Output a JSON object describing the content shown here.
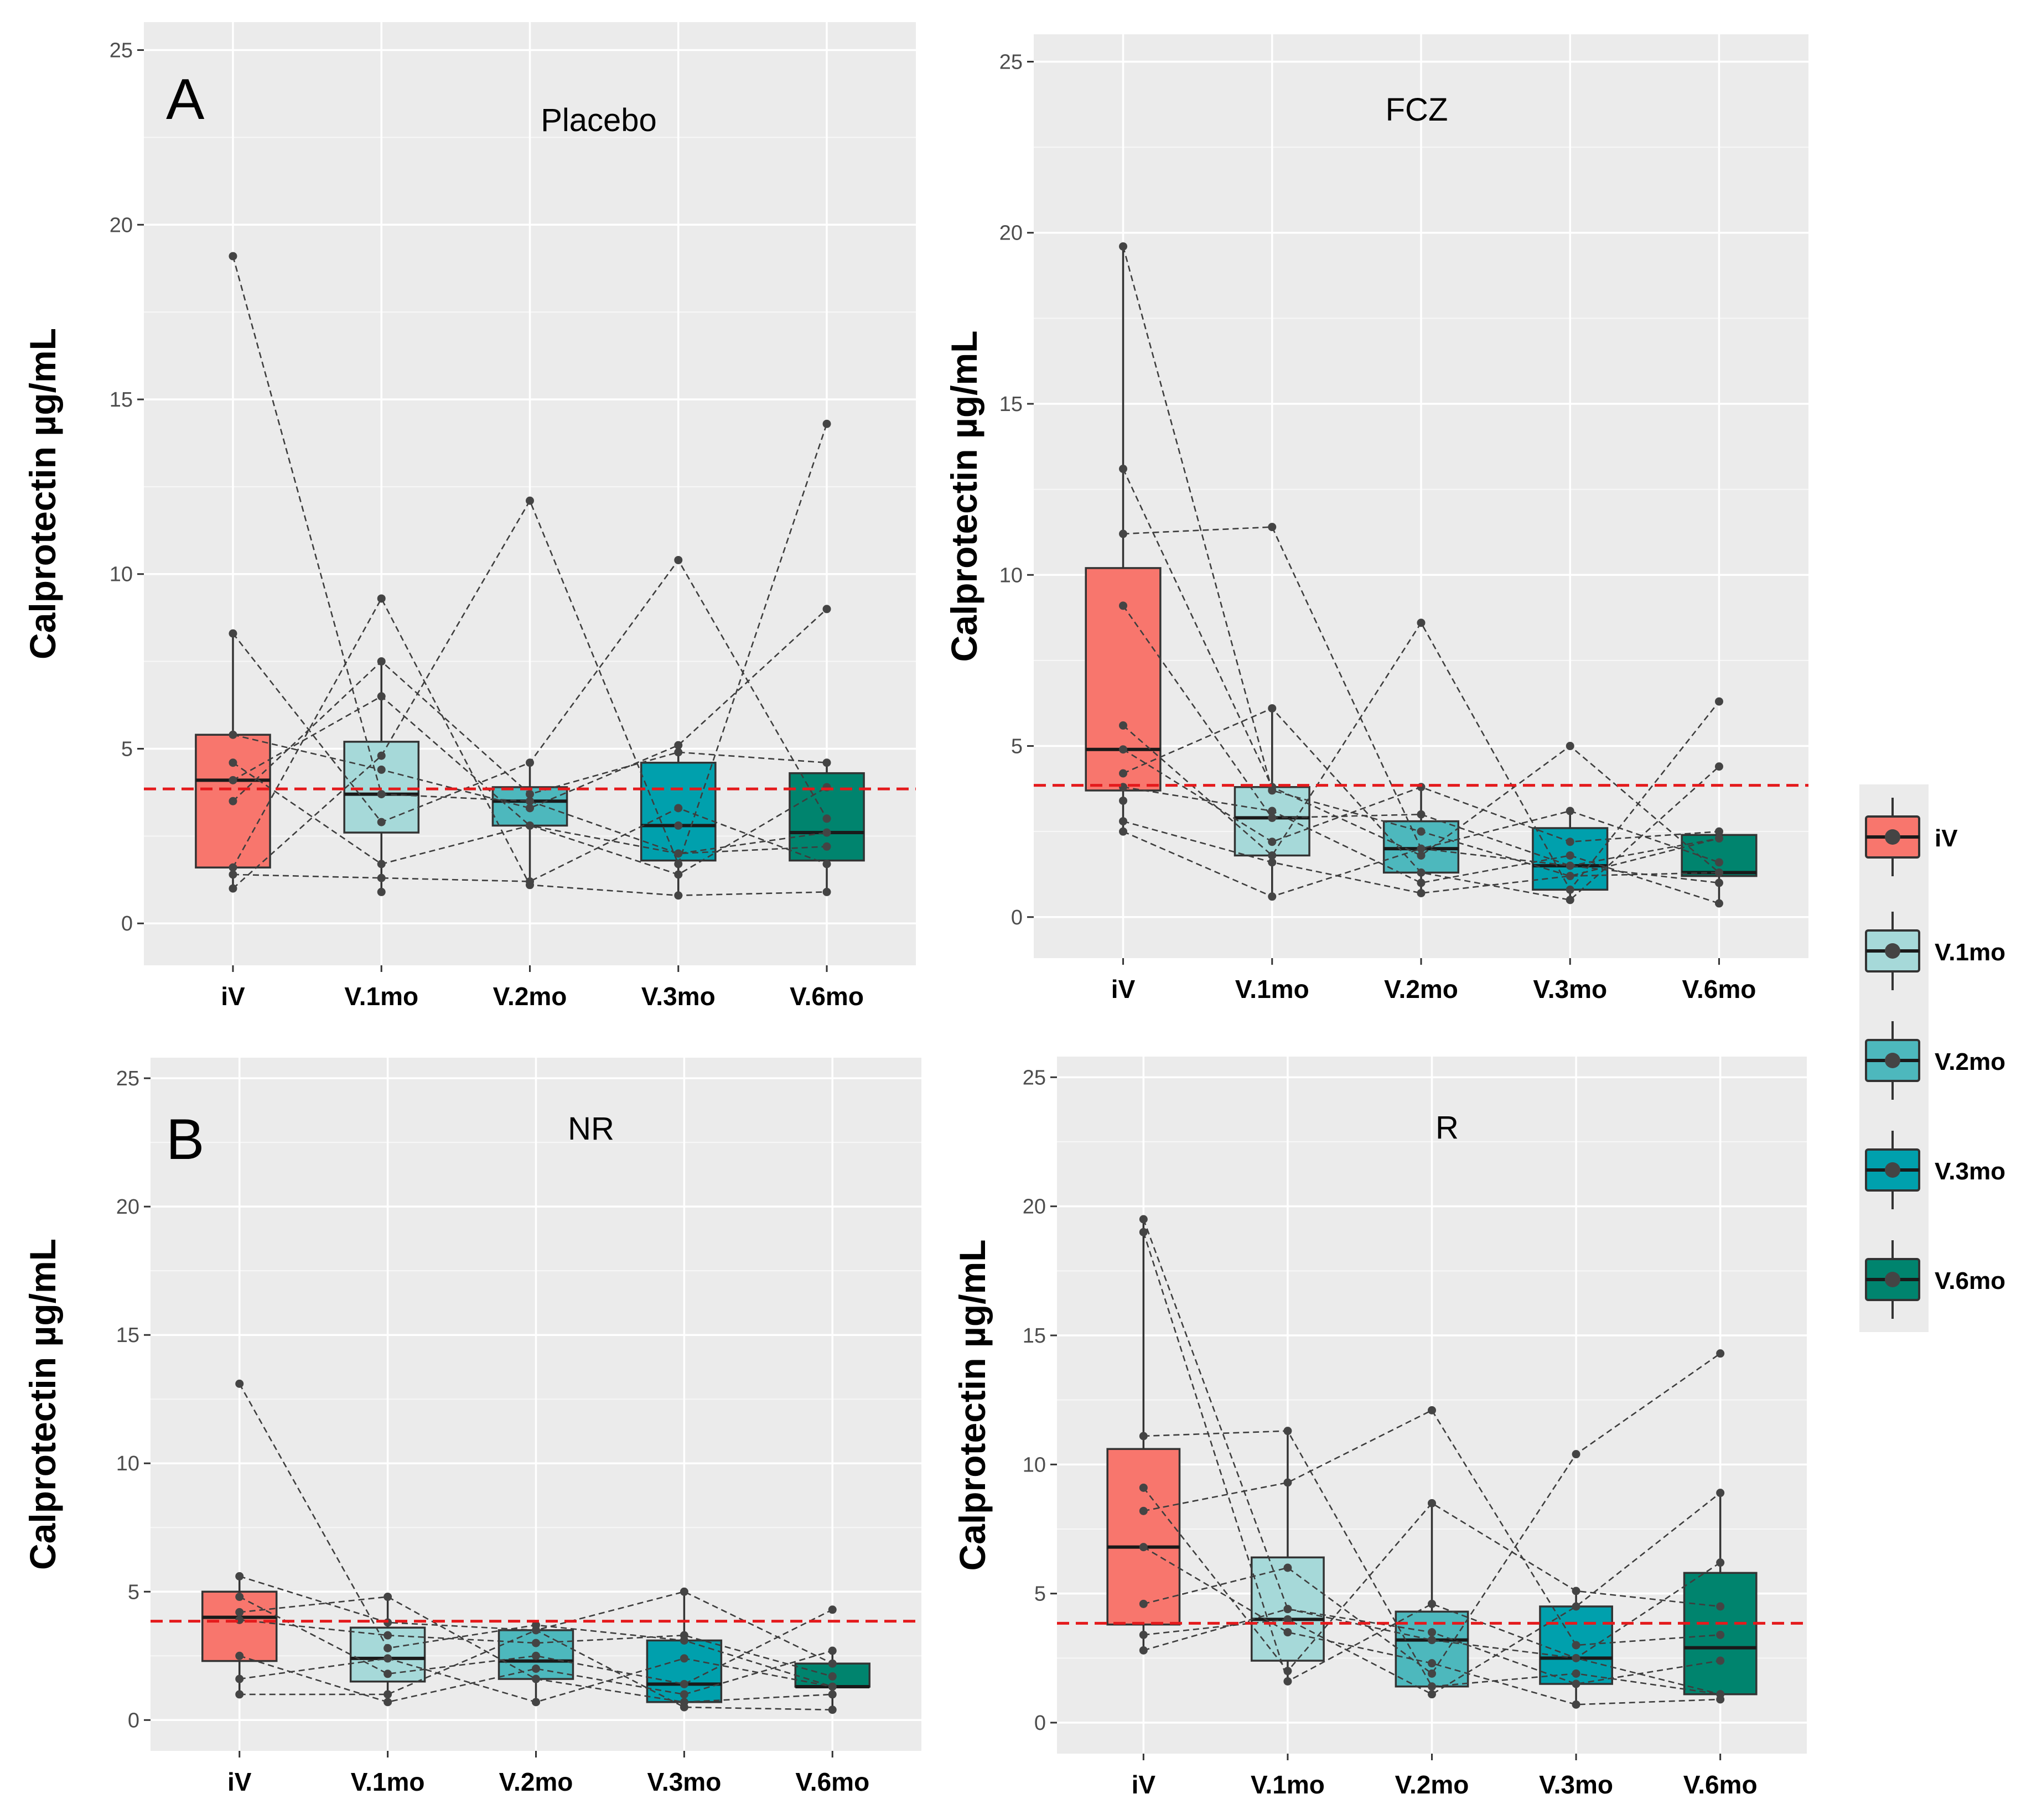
{
  "figure": {
    "ylabel": "Calprotectin µg/mL",
    "reference_line": 3.85,
    "reference_color": "#e41a1c"
  },
  "legend": {
    "items": [
      {
        "label": "iV",
        "color": "#f8766d"
      },
      {
        "label": "V.1mo",
        "color": "#a6d9d9"
      },
      {
        "label": "V.2mo",
        "color": "#4db8bd"
      },
      {
        "label": "V.3mo",
        "color": "#00a0ad"
      },
      {
        "label": "V.6mo",
        "color": "#00846e"
      }
    ]
  },
  "chart_data": [
    {
      "type": "box",
      "panel_letter": "A",
      "title": "Placebo",
      "categories": [
        "iV",
        "V.1mo",
        "V.2mo",
        "V.3mo",
        "V.6mo"
      ],
      "ylabel": "Calprotectin µg/mL",
      "ylim": [
        -1.2,
        25.8
      ],
      "yticks": [
        0,
        5,
        10,
        15,
        20,
        25
      ],
      "boxes": [
        {
          "q1": 1.6,
          "median": 4.1,
          "q3": 5.4,
          "wmin": 1.0,
          "wmax": 8.3,
          "points": [
            19.1,
            8.3,
            5.4,
            4.6,
            4.1,
            3.5,
            1.6,
            1.4,
            1.0
          ]
        },
        {
          "q1": 2.6,
          "median": 3.7,
          "q3": 5.2,
          "wmin": 0.9,
          "wmax": 7.5,
          "points": [
            9.3,
            7.5,
            6.5,
            4.8,
            4.4,
            3.7,
            2.9,
            1.7,
            1.3,
            0.9
          ]
        },
        {
          "q1": 2.8,
          "median": 3.5,
          "q3": 3.9,
          "wmin": 1.1,
          "wmax": 4.6,
          "points": [
            12.1,
            4.6,
            3.7,
            3.5,
            3.3,
            2.8,
            1.2,
            1.1
          ]
        },
        {
          "q1": 1.8,
          "median": 2.8,
          "q3": 4.6,
          "wmin": 0.8,
          "wmax": 5.1,
          "points": [
            10.4,
            5.1,
            4.9,
            3.3,
            2.8,
            2.0,
            1.7,
            1.4,
            0.8
          ]
        },
        {
          "q1": 1.8,
          "median": 2.6,
          "q3": 4.3,
          "wmin": 0.9,
          "wmax": 4.6,
          "points": [
            14.3,
            9.0,
            4.6,
            3.9,
            3.0,
            2.6,
            2.2,
            1.7,
            0.9
          ]
        }
      ],
      "lines": [
        [
          1.0,
          4.8,
          12.1,
          1.7,
          14.3
        ],
        [
          19.1,
          3.7,
          3.5,
          2.0,
          2.6
        ],
        [
          8.3,
          2.9,
          4.6,
          10.4,
          3.0
        ],
        [
          5.4,
          4.4,
          3.3,
          5.1,
          9.0
        ],
        [
          4.6,
          1.7,
          2.8,
          2.0,
          2.2
        ],
        [
          3.5,
          7.5,
          3.7,
          4.9,
          4.6
        ],
        [
          1.6,
          9.3,
          1.1,
          0.8,
          0.9
        ],
        [
          1.4,
          1.3,
          1.2,
          3.3,
          1.7
        ],
        [
          4.1,
          6.5,
          2.8,
          1.4,
          3.9
        ]
      ]
    },
    {
      "type": "box",
      "panel_letter": "",
      "title": "FCZ",
      "categories": [
        "iV",
        "V.1mo",
        "V.2mo",
        "V.3mo",
        "V.6mo"
      ],
      "ylabel": "Calprotectin µg/mL",
      "ylim": [
        -1.2,
        25.8
      ],
      "yticks": [
        0,
        5,
        10,
        15,
        20,
        25
      ],
      "boxes": [
        {
          "q1": 3.7,
          "median": 4.9,
          "q3": 10.2,
          "wmin": 2.5,
          "wmax": 19.6,
          "points": [
            19.6,
            13.1,
            11.2,
            9.1,
            5.6,
            4.9,
            4.2,
            3.8,
            3.4,
            2.8,
            2.5
          ]
        },
        {
          "q1": 1.8,
          "median": 2.9,
          "q3": 3.8,
          "wmin": 0.6,
          "wmax": 6.1,
          "points": [
            11.4,
            6.1,
            3.8,
            3.7,
            3.1,
            2.9,
            2.2,
            1.8,
            1.6,
            0.6
          ]
        },
        {
          "q1": 1.3,
          "median": 2.0,
          "q3": 2.8,
          "wmin": 0.7,
          "wmax": 3.8,
          "points": [
            8.6,
            3.8,
            3.0,
            2.5,
            2.0,
            1.8,
            1.3,
            1.0,
            0.7
          ]
        },
        {
          "q1": 0.8,
          "median": 1.5,
          "q3": 2.6,
          "wmin": 0.5,
          "wmax": 3.1,
          "points": [
            5.0,
            3.1,
            2.2,
            1.8,
            1.5,
            1.2,
            0.8,
            0.5
          ]
        },
        {
          "q1": 1.2,
          "median": 1.3,
          "q3": 2.4,
          "wmin": 0.4,
          "wmax": 2.5,
          "points": [
            6.3,
            4.4,
            2.5,
            2.3,
            1.6,
            1.3,
            1.0,
            0.4
          ]
        }
      ],
      "lines": [
        [
          19.6,
          3.7,
          2.5,
          1.2,
          2.3
        ],
        [
          13.1,
          3.8,
          1.8,
          5.0,
          1.3
        ],
        [
          11.2,
          11.4,
          2.0,
          3.1,
          1.6
        ],
        [
          9.1,
          2.9,
          3.0,
          1.5,
          1.0
        ],
        [
          5.6,
          1.8,
          8.6,
          0.8,
          6.3
        ],
        [
          4.9,
          2.2,
          3.8,
          2.2,
          2.5
        ],
        [
          4.2,
          6.1,
          1.3,
          0.5,
          4.4
        ],
        [
          3.8,
          3.1,
          1.0,
          1.8,
          0.4
        ],
        [
          2.8,
          1.6,
          0.7,
          1.2,
          1.3
        ],
        [
          2.5,
          0.6,
          2.0,
          1.5,
          2.3
        ]
      ]
    },
    {
      "type": "box",
      "panel_letter": "B",
      "title": "NR",
      "categories": [
        "iV",
        "V.1mo",
        "V.2mo",
        "V.3mo",
        "V.6mo"
      ],
      "ylabel": "Calprotectin µg/mL",
      "ylim": [
        -1.2,
        25.8
      ],
      "yticks": [
        0,
        5,
        10,
        15,
        20,
        25
      ],
      "boxes": [
        {
          "q1": 2.3,
          "median": 4.0,
          "q3": 5.0,
          "wmin": 1.0,
          "wmax": 5.6,
          "points": [
            13.1,
            5.6,
            4.8,
            4.2,
            3.9,
            2.5,
            1.6,
            1.0
          ]
        },
        {
          "q1": 1.5,
          "median": 2.4,
          "q3": 3.6,
          "wmin": 0.7,
          "wmax": 4.8,
          "points": [
            4.8,
            3.8,
            3.3,
            2.8,
            2.4,
            1.8,
            1.0,
            0.7
          ]
        },
        {
          "q1": 1.6,
          "median": 2.3,
          "q3": 3.5,
          "wmin": 0.7,
          "wmax": 3.7,
          "points": [
            3.7,
            3.5,
            3.0,
            2.5,
            2.0,
            1.6,
            0.7
          ]
        },
        {
          "q1": 0.7,
          "median": 1.4,
          "q3": 3.1,
          "wmin": 0.5,
          "wmax": 5.0,
          "points": [
            5.0,
            3.3,
            3.1,
            2.4,
            1.4,
            1.0,
            0.7,
            0.5
          ]
        },
        {
          "q1": 1.3,
          "median": 1.3,
          "q3": 2.2,
          "wmin": 0.4,
          "wmax": 2.7,
          "points": [
            4.3,
            2.7,
            2.2,
            1.7,
            1.3,
            1.0,
            0.4
          ]
        }
      ],
      "lines": [
        [
          13.1,
          2.8,
          3.7,
          3.1,
          1.3
        ],
        [
          5.6,
          3.8,
          3.5,
          5.0,
          2.2
        ],
        [
          4.8,
          1.8,
          2.5,
          1.4,
          4.3
        ],
        [
          4.2,
          4.8,
          1.6,
          0.7,
          1.0
        ],
        [
          3.9,
          3.3,
          3.0,
          3.3,
          1.7
        ],
        [
          2.5,
          0.7,
          2.0,
          1.0,
          2.7
        ],
        [
          1.6,
          2.4,
          0.7,
          2.4,
          1.3
        ],
        [
          1.0,
          1.0,
          3.5,
          0.5,
          0.4
        ]
      ]
    },
    {
      "type": "box",
      "panel_letter": "",
      "title": "R",
      "categories": [
        "iV",
        "V.1mo",
        "V.2mo",
        "V.3mo",
        "V.6mo"
      ],
      "ylabel": "Calprotectin µg/mL",
      "ylim": [
        -1.2,
        25.8
      ],
      "yticks": [
        0,
        5,
        10,
        15,
        20,
        25
      ],
      "boxes": [
        {
          "q1": 3.8,
          "median": 6.8,
          "q3": 10.6,
          "wmin": 2.8,
          "wmax": 19.5,
          "points": [
            19.5,
            19.0,
            11.1,
            9.1,
            8.2,
            6.8,
            4.6,
            3.4,
            2.8
          ]
        },
        {
          "q1": 2.4,
          "median": 4.0,
          "q3": 6.4,
          "wmin": 1.6,
          "wmax": 11.3,
          "points": [
            11.3,
            9.3,
            6.0,
            4.4,
            4.0,
            3.5,
            2.0,
            1.6
          ]
        },
        {
          "q1": 1.4,
          "median": 3.2,
          "q3": 4.3,
          "wmin": 1.1,
          "wmax": 8.5,
          "points": [
            12.1,
            8.5,
            4.6,
            3.5,
            3.2,
            2.3,
            1.9,
            1.4,
            1.1
          ]
        },
        {
          "q1": 1.5,
          "median": 2.5,
          "q3": 4.5,
          "wmin": 0.7,
          "wmax": 5.1,
          "points": [
            10.4,
            5.1,
            4.5,
            3.0,
            2.5,
            1.9,
            1.5,
            0.7
          ]
        },
        {
          "q1": 1.1,
          "median": 2.9,
          "q3": 5.8,
          "wmin": 0.9,
          "wmax": 8.9,
          "points": [
            14.3,
            8.9,
            6.2,
            4.5,
            3.4,
            2.4,
            1.1,
            0.9
          ]
        }
      ],
      "lines": [
        [
          19.5,
          4.4,
          3.5,
          1.5,
          2.4
        ],
        [
          19.0,
          1.6,
          4.6,
          2.5,
          6.2
        ],
        [
          11.1,
          11.3,
          1.4,
          1.9,
          1.1
        ],
        [
          9.1,
          2.0,
          8.5,
          5.1,
          4.5
        ],
        [
          8.2,
          9.3,
          12.1,
          3.0,
          3.4
        ],
        [
          6.8,
          3.5,
          2.3,
          0.7,
          0.9
        ],
        [
          4.6,
          6.0,
          1.9,
          10.4,
          14.3
        ],
        [
          3.4,
          4.0,
          1.1,
          4.5,
          8.9
        ],
        [
          2.8,
          4.4,
          3.2,
          2.5,
          1.1
        ]
      ]
    }
  ]
}
